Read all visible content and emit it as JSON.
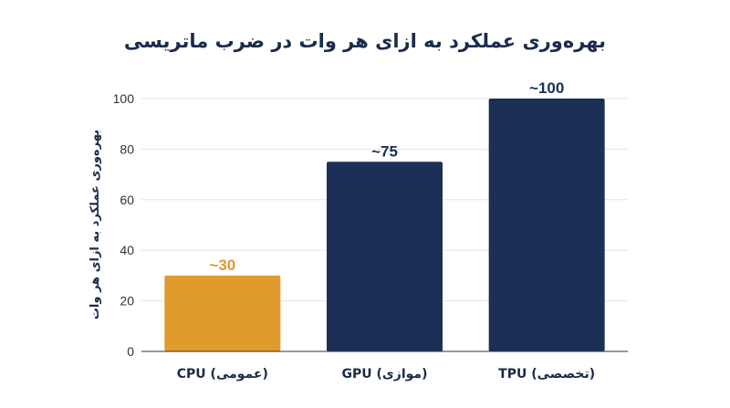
{
  "chart_data": {
    "type": "bar",
    "title": "بهره‌وری عملکرد به ازای هر وات در ضرب ماتریسی",
    "xlabel": "",
    "ylabel": "بهره‌وری عملکرد به ازای هر وات",
    "categories": [
      "CPU (عمومی)",
      "GPU (موازی)",
      "TPU (تخصصی)"
    ],
    "values": [
      30,
      75,
      100
    ],
    "data_labels": [
      "~30",
      "~75",
      "~100"
    ],
    "bar_colors": [
      "#e09b2d",
      "#1b2f57",
      "#1b2f57"
    ],
    "label_colors": [
      "#e09b2d",
      "#1b2f57",
      "#1b2f57"
    ],
    "ylim": [
      0,
      100
    ],
    "yticks": [
      0,
      20,
      40,
      60,
      80,
      100
    ],
    "grid": true,
    "legend": "none"
  }
}
